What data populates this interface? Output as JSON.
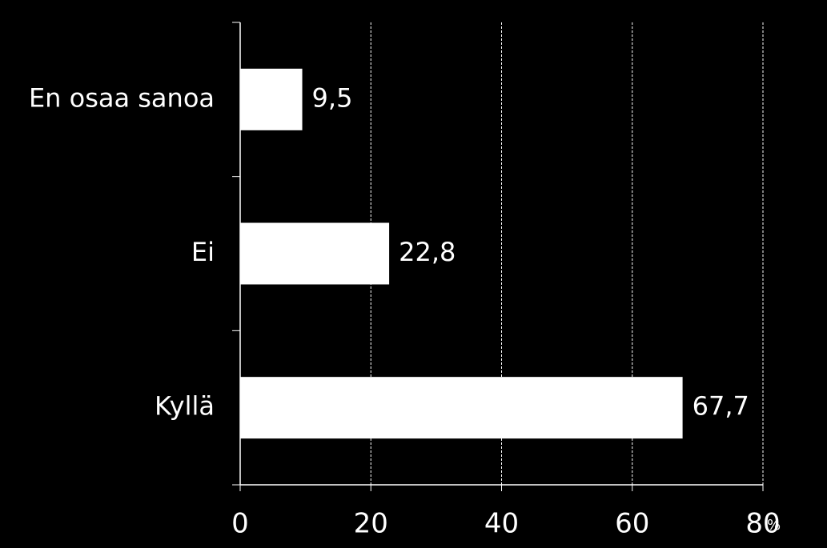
{
  "chart_data": {
    "type": "barh",
    "categories": [
      "En osaa sanoa",
      "Ei",
      "Kyllä"
    ],
    "values": [
      9.5,
      22.8,
      67.7
    ],
    "value_labels": [
      "9,5",
      "22,8",
      "67,7"
    ],
    "color": "#ffffff",
    "xlim": [
      0,
      80
    ],
    "xticks": [
      0,
      20,
      40,
      60,
      80
    ],
    "x_unit": "%",
    "grid": true
  }
}
